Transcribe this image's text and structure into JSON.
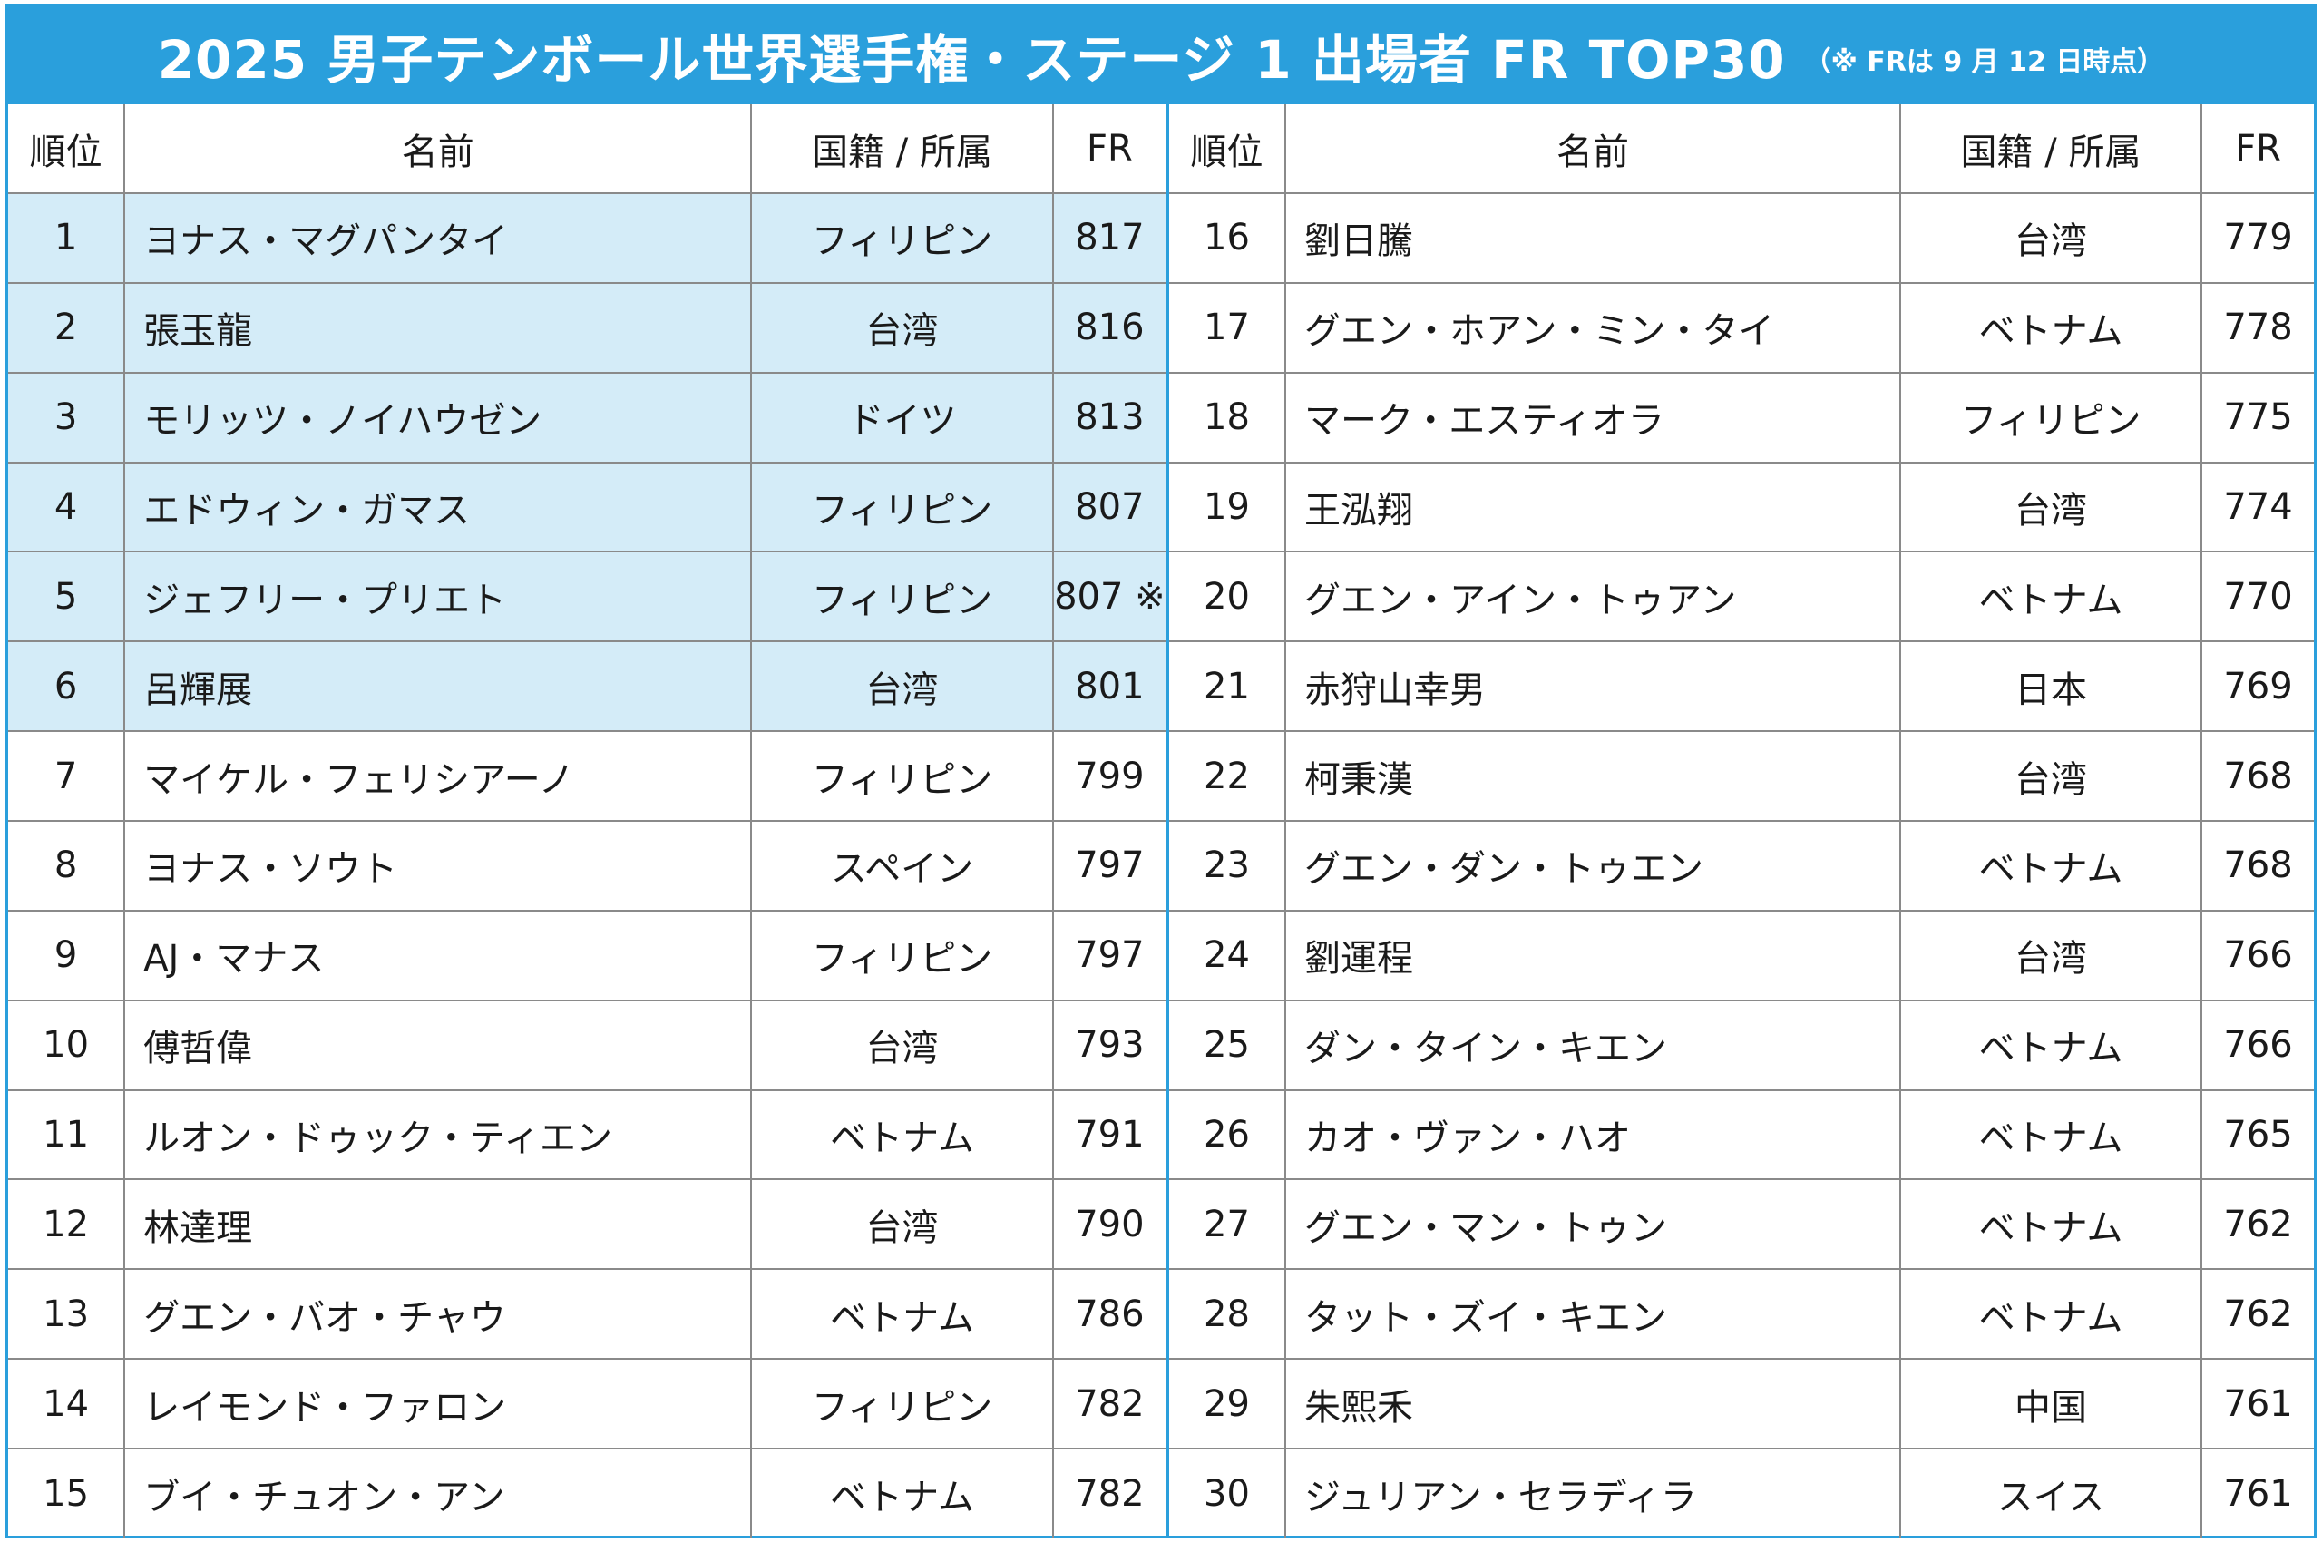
{
  "title": {
    "main": "2025 男子テンボール世界選手権・ステージ 1 出場者 FR TOP30",
    "note": "（※ FRは 9 月 12 日時点）"
  },
  "headers": {
    "rank": "順位",
    "name": "名前",
    "nationality": "国籍 / 所属",
    "fr": "FR"
  },
  "colors": {
    "accent": "#2a9fdc",
    "highlight": "#d4ecf8"
  },
  "left_rows": [
    {
      "rank": "1",
      "name": "ヨナス・マグパンタイ",
      "nationality": "フィリピン",
      "fr": "817"
    },
    {
      "rank": "2",
      "name": "張玉龍",
      "nationality": "台湾",
      "fr": "816"
    },
    {
      "rank": "3",
      "name": "モリッツ・ノイハウゼン",
      "nationality": "ドイツ",
      "fr": "813"
    },
    {
      "rank": "4",
      "name": "エドウィン・ガマス",
      "nationality": "フィリピン",
      "fr": "807"
    },
    {
      "rank": "5",
      "name": "ジェフリー・プリエト",
      "nationality": "フィリピン",
      "fr": "807 ※"
    },
    {
      "rank": "6",
      "name": "呂輝展",
      "nationality": "台湾",
      "fr": "801"
    },
    {
      "rank": "7",
      "name": "マイケル・フェリシアーノ",
      "nationality": "フィリピン",
      "fr": "799"
    },
    {
      "rank": "8",
      "name": "ヨナス・ソウト",
      "nationality": "スペイン",
      "fr": "797"
    },
    {
      "rank": "9",
      "name": "AJ・マナス",
      "nationality": "フィリピン",
      "fr": "797"
    },
    {
      "rank": "10",
      "name": "傅哲偉",
      "nationality": "台湾",
      "fr": "793"
    },
    {
      "rank": "11",
      "name": "ルオン・ドゥック・ティエン",
      "nationality": "ベトナム",
      "fr": "791"
    },
    {
      "rank": "12",
      "name": "林達理",
      "nationality": "台湾",
      "fr": "790"
    },
    {
      "rank": "13",
      "name": "グエン・バオ・チャウ",
      "nationality": "ベトナム",
      "fr": "786"
    },
    {
      "rank": "14",
      "name": "レイモンド・ファロン",
      "nationality": "フィリピン",
      "fr": "782"
    },
    {
      "rank": "15",
      "name": "ブイ・チュオン・アン",
      "nationality": "ベトナム",
      "fr": "782"
    }
  ],
  "right_rows": [
    {
      "rank": "16",
      "name": "劉日騰",
      "nationality": "台湾",
      "fr": "779"
    },
    {
      "rank": "17",
      "name": "グエン・ホアン・ミン・タイ",
      "nationality": "ベトナム",
      "fr": "778"
    },
    {
      "rank": "18",
      "name": "マーク・エスティオラ",
      "nationality": "フィリピン",
      "fr": "775"
    },
    {
      "rank": "19",
      "name": "王泓翔",
      "nationality": "台湾",
      "fr": "774"
    },
    {
      "rank": "20",
      "name": "グエン・アイン・トゥアン",
      "nationality": "ベトナム",
      "fr": "770"
    },
    {
      "rank": "21",
      "name": "赤狩山幸男",
      "nationality": "日本",
      "fr": "769"
    },
    {
      "rank": "22",
      "name": "柯秉漢",
      "nationality": "台湾",
      "fr": "768"
    },
    {
      "rank": "23",
      "name": "グエン・ダン・トゥエン",
      "nationality": "ベトナム",
      "fr": "768"
    },
    {
      "rank": "24",
      "name": "劉運程",
      "nationality": "台湾",
      "fr": "766"
    },
    {
      "rank": "25",
      "name": "ダン・タイン・キエン",
      "nationality": "ベトナム",
      "fr": "766"
    },
    {
      "rank": "26",
      "name": "カオ・ヴァン・ハオ",
      "nationality": "ベトナム",
      "fr": "765"
    },
    {
      "rank": "27",
      "name": "グエン・マン・トゥン",
      "nationality": "ベトナム",
      "fr": "762"
    },
    {
      "rank": "28",
      "name": "タット・ズイ・キエン",
      "nationality": "ベトナム",
      "fr": "762"
    },
    {
      "rank": "29",
      "name": "朱熙禾",
      "nationality": "中国",
      "fr": "761"
    },
    {
      "rank": "30",
      "name": "ジュリアン・セラディラ",
      "nationality": "スイス",
      "fr": "761"
    }
  ]
}
